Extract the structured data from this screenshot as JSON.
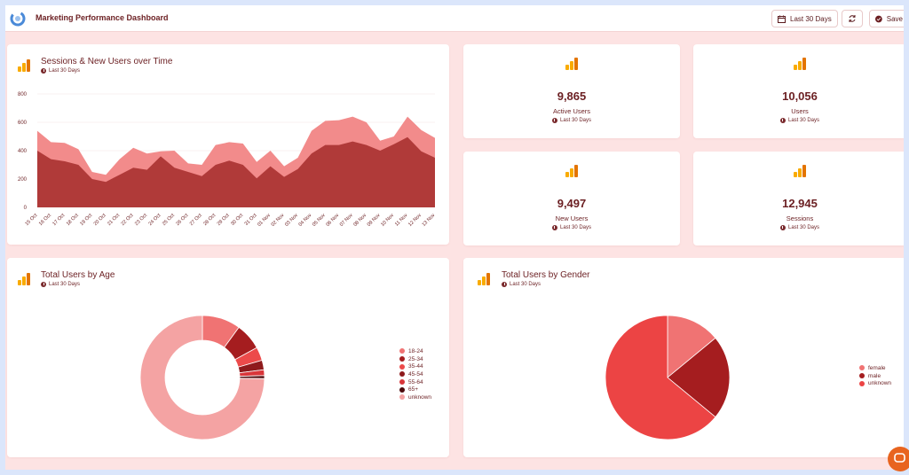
{
  "app": {
    "title": "Marketing Performance Dashboard"
  },
  "toolbar": {
    "date_range_label": "Last 30 Days",
    "save_label": "Save"
  },
  "icons": {
    "logo": "app-logo-icon",
    "calendar": "calendar-icon",
    "refresh": "refresh-icon",
    "save": "check-circle-icon",
    "analytics": "google-analytics-icon",
    "clock": "clock-icon",
    "chat": "chat-icon"
  },
  "colors": {
    "accent": "#6b1f22",
    "area_sessions": "#f28b8b",
    "area_users": "#b03a39",
    "page_bg": "#fde3e3"
  },
  "sessions_card": {
    "title": "Sessions & New Users over Time",
    "subtitle": "Last 30 Days"
  },
  "kpis": [
    {
      "value": "9,865",
      "label": "Active Users",
      "subtitle": "Last 30 Days"
    },
    {
      "value": "10,056",
      "label": "Users",
      "subtitle": "Last 30 Days"
    },
    {
      "value": "9,497",
      "label": "New Users",
      "subtitle": "Last 30 Days"
    },
    {
      "value": "12,945",
      "label": "Sessions",
      "subtitle": "Last 30 Days"
    }
  ],
  "age_card": {
    "title": "Total Users by Age",
    "subtitle": "Last 30 Days"
  },
  "gender_card": {
    "title": "Total Users by Gender",
    "subtitle": "Last 30 Days"
  },
  "chart_data": [
    {
      "type": "area",
      "title": "Sessions & New Users over Time",
      "ylim": [
        0,
        800
      ],
      "yticks": [
        0,
        200,
        400,
        600,
        800
      ],
      "grid": true,
      "x": [
        "15 Oct",
        "16 Oct",
        "17 Oct",
        "18 Oct",
        "19 Oct",
        "20 Oct",
        "21 Oct",
        "22 Oct",
        "23 Oct",
        "24 Oct",
        "25 Oct",
        "26 Oct",
        "27 Oct",
        "28 Oct",
        "29 Oct",
        "30 Oct",
        "31 Oct",
        "01 Nov",
        "02 Nov",
        "03 Nov",
        "04 Nov",
        "05 Nov",
        "06 Nov",
        "07 Nov",
        "08 Nov",
        "09 Nov",
        "10 Nov",
        "11 Nov",
        "12 Nov",
        "13 Nov"
      ],
      "series": [
        {
          "values": [
            540,
            460,
            455,
            410,
            250,
            230,
            340,
            420,
            380,
            395,
            400,
            310,
            300,
            440,
            460,
            450,
            320,
            400,
            290,
            350,
            540,
            610,
            615,
            640,
            600,
            470,
            500,
            640,
            545,
            490
          ],
          "color": "#f28b8b"
        },
        {
          "values": [
            400,
            340,
            325,
            300,
            200,
            180,
            230,
            280,
            265,
            360,
            280,
            250,
            220,
            300,
            330,
            300,
            205,
            290,
            215,
            270,
            380,
            440,
            440,
            465,
            440,
            400,
            445,
            495,
            395,
            350
          ],
          "color": "#b03a39"
        }
      ]
    },
    {
      "type": "pie",
      "title": "Total Users by Age",
      "donut": true,
      "legend": "right",
      "categories": [
        "18-24",
        "25-34",
        "35-44",
        "45-54",
        "55-64",
        "65+",
        "unknown"
      ],
      "values": [
        10,
        7,
        3.5,
        2.5,
        1.5,
        0.8,
        74.7
      ],
      "colors": [
        "#f07373",
        "#a51d1f",
        "#ec4a4a",
        "#8e1a1c",
        "#d9363a",
        "#4d0a0c",
        "#f4a3a3"
      ]
    },
    {
      "type": "pie",
      "title": "Total Users by Gender",
      "donut": false,
      "legend": "right",
      "categories": [
        "female",
        "male",
        "unknown"
      ],
      "values": [
        14,
        22,
        64
      ],
      "colors": [
        "#f07373",
        "#a51d1f",
        "#ec4444"
      ]
    }
  ]
}
